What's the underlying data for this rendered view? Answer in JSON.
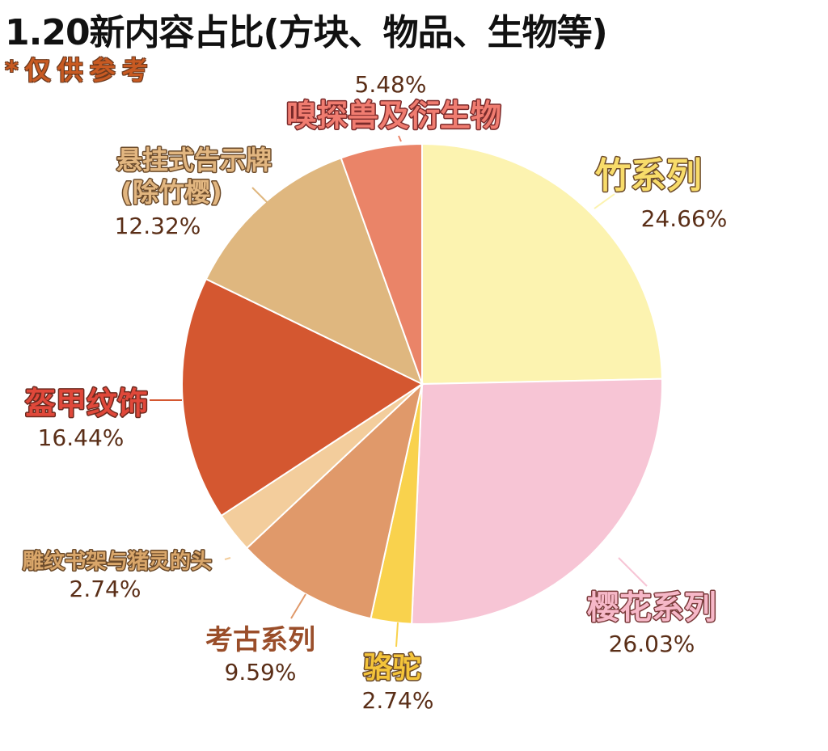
{
  "chart_data": {
    "type": "pie",
    "title": "1.20新内容占比(方块、物品、生物等)",
    "subtitle": "*仅供参考",
    "start": "top",
    "direction": "clockwise",
    "slices": [
      {
        "label": "竹系列",
        "value": 24.66,
        "pct": "24.66%",
        "color": "#FCF3B0",
        "text_color": "#F8DC6A",
        "outline": "#6b4a2a"
      },
      {
        "label": "樱花系列",
        "value": 26.03,
        "pct": "26.03%",
        "color": "#F7C5D5",
        "text_color": "#F6B8C8",
        "outline": "#7a3a3a"
      },
      {
        "label": "骆驼",
        "value": 2.74,
        "pct": "2.74%",
        "color": "#F9D24D",
        "text_color": "#F4C43A",
        "outline": "#6b4a2a"
      },
      {
        "label": "考古系列",
        "value": 9.59,
        "pct": "9.59%",
        "color": "#E0996A",
        "text_color": "#9A4E2A",
        "outline": "#ffffff"
      },
      {
        "label": "雕纹书架与猪灵的头",
        "value": 2.74,
        "pct": "2.74%",
        "color": "#F3CD9C",
        "text_color": "#D9A66A",
        "outline": "#6b4a2a"
      },
      {
        "label": "盔甲纹饰",
        "value": 16.44,
        "pct": "16.44%",
        "color": "#D45730",
        "text_color": "#E0483A",
        "outline": "#6b2a1f"
      },
      {
        "label": "悬挂式告示牌",
        "label2": "(除竹樱)",
        "value": 12.32,
        "pct": "12.32%",
        "color": "#DFB77F",
        "text_color": "#E2B680",
        "outline": "#6b4a2a"
      },
      {
        "label": "嗅探兽及衍生物",
        "value": 5.48,
        "pct": "5.48%",
        "color": "#EA8468",
        "text_color": "#F07C70",
        "outline": "#7a2a2a"
      }
    ]
  }
}
